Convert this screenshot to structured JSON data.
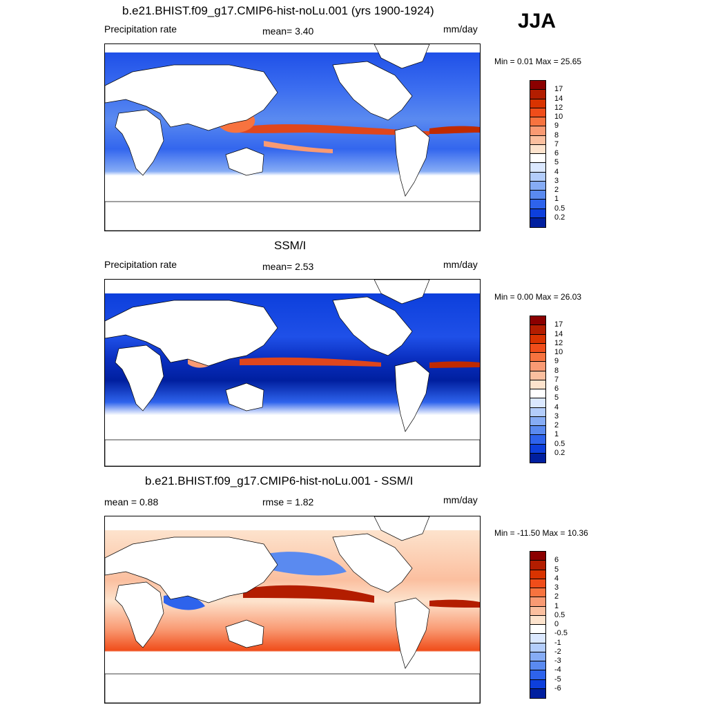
{
  "season": "JJA",
  "panels": [
    {
      "id": "model",
      "title": "b.e21.BHIST.f09_g17.CMIP6-hist-noLu.001 (yrs 1900-1924)",
      "left_text": "Precipitation rate",
      "center_text": "mean=   3.40",
      "right_text": "mm/day",
      "minmax_text": "Min =   0.01 Max =  25.65",
      "colorbar": {
        "labels": [
          "17",
          "14",
          "12",
          "10",
          "9",
          "8",
          "7",
          "6",
          "5",
          "4",
          "3",
          "2",
          "1",
          "0.5",
          "0.2"
        ],
        "colors": [
          "#8b0000",
          "#b31d00",
          "#d93300",
          "#f04d1a",
          "#f7733f",
          "#f99a73",
          "#fbbf9f",
          "#fde3cd",
          "#ffffff",
          "#dbe8ff",
          "#b3cdfb",
          "#86acf5",
          "#5a8af0",
          "#2e63ec",
          "#0d3fdc",
          "#001f9f"
        ]
      }
    },
    {
      "id": "obs",
      "title": "SSM/I",
      "left_text": "Precipitation rate",
      "center_text": "mean=   2.53",
      "right_text": "mm/day",
      "minmax_text": "Min =   0.00 Max =  26.03",
      "colorbar": {
        "labels": [
          "17",
          "14",
          "12",
          "10",
          "9",
          "8",
          "7",
          "6",
          "5",
          "4",
          "3",
          "2",
          "1",
          "0.5",
          "0.2"
        ],
        "colors": [
          "#8b0000",
          "#b31d00",
          "#d93300",
          "#f04d1a",
          "#f7733f",
          "#f99a73",
          "#fbbf9f",
          "#fde3cd",
          "#ffffff",
          "#dbe8ff",
          "#b3cdfb",
          "#86acf5",
          "#5a8af0",
          "#2e63ec",
          "#0d3fdc",
          "#001f9f"
        ]
      }
    },
    {
      "id": "diff",
      "title": "b.e21.BHIST.f09_g17.CMIP6-hist-noLu.001 - SSM/I",
      "left_text": "mean =   0.88",
      "center_text": "rmse =   1.82",
      "right_text": "mm/day",
      "minmax_text": "Min = -11.50 Max =  10.36",
      "colorbar": {
        "labels": [
          "6",
          "5",
          "4",
          "3",
          "2",
          "1",
          "0.5",
          "0",
          "-0.5",
          "-1",
          "-2",
          "-3",
          "-4",
          "-5",
          "-6"
        ],
        "colors": [
          "#8b0000",
          "#b31d00",
          "#d93300",
          "#f04d1a",
          "#f7733f",
          "#f99a73",
          "#fbbf9f",
          "#fde3cd",
          "#ffffff",
          "#dbe8ff",
          "#b3cdfb",
          "#86acf5",
          "#5a8af0",
          "#2e63ec",
          "#0d3fdc",
          "#001f9f"
        ]
      }
    }
  ]
}
